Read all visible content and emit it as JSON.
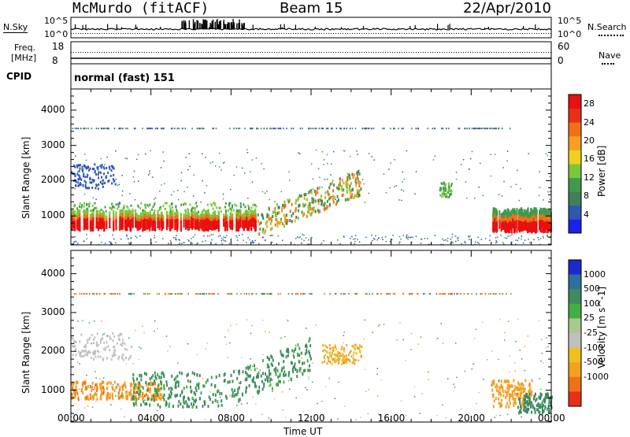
{
  "header": {
    "station": "McMurdo (fitACF)",
    "beam": "Beam 15",
    "date": "22/Apr/2010",
    "nsky_label": "N.Sky",
    "nsearch_label": "N.Search",
    "freq_label": "Freq.",
    "freq_unit": "[MHz]",
    "nave_label": "Nave",
    "cpid_label": "CPID",
    "cpid_value": "normal (fast) 151",
    "noise_ticks_left": [
      "10^5",
      "10^0"
    ],
    "noise_ticks_right": [
      "10^5",
      "10^0"
    ],
    "freq_ticks": [
      "18",
      "8"
    ],
    "nave_ticks": [
      "60",
      "0"
    ]
  },
  "chart_data": [
    {
      "type": "heatmap",
      "panel": "power",
      "xlabel": "",
      "ylabel": "Slant Range [km]",
      "ylim": [
        180,
        4600
      ],
      "yticks": [
        1000,
        2000,
        3000,
        4000
      ],
      "xlim_hours": [
        0,
        24
      ],
      "colorbar": {
        "label": "Power [dB]",
        "ticks": [
          "4",
          "8",
          "12",
          "16",
          "20",
          "24",
          "28"
        ],
        "colors": [
          "#1a22e8",
          "#2f55b5",
          "#3f7f5a",
          "#3f9a4c",
          "#7ac83a",
          "#f0d020",
          "#f4a020",
          "#f07018",
          "#e83018",
          "#e81010"
        ]
      },
      "features": [
        {
          "desc": "strong backscatter band",
          "t_start": 0.0,
          "t_end": 9.3,
          "range_km": [
            500,
            1250
          ],
          "value_db": 28
        },
        {
          "desc": "band rising to 2000 km",
          "t_start": 9.3,
          "t_end": 14.5,
          "range_km": [
            800,
            2200
          ],
          "value_db": 14
        },
        {
          "desc": "late band",
          "t_start": 21.0,
          "t_end": 24.0,
          "range_km": [
            500,
            1200
          ],
          "value_db": 26
        },
        {
          "desc": "weak scatter line",
          "t_start": 0.0,
          "t_end": 22.0,
          "range_km": [
            3440,
            3500
          ],
          "value_db": 6
        }
      ]
    },
    {
      "type": "heatmap",
      "panel": "velocity",
      "xlabel": "Time UT",
      "ylabel": "Slant Range [km]",
      "ylim": [
        180,
        4600
      ],
      "yticks": [
        1000,
        2000,
        3000,
        4000
      ],
      "xticks": [
        "00:00",
        "04:00",
        "08:00",
        "12:00",
        "16:00",
        "20:00",
        "00:00"
      ],
      "xlim_hours": [
        0,
        24
      ],
      "colorbar": {
        "label": "Velocity [m s^-1]",
        "ticks": [
          "1000",
          "500",
          "100",
          "25",
          "-25",
          "-100",
          "-500",
          "-1000"
        ],
        "colors": [
          "#1a2ad0",
          "#2f6fa0",
          "#3f8a60",
          "#40b040",
          "#a8c890",
          "#c0c0c0",
          "#f0c020",
          "#f4a020",
          "#f07018",
          "#e83018"
        ]
      },
      "features": [
        {
          "desc": "negative velocities",
          "t_start": 0.0,
          "t_end": 4.5,
          "range_km": [
            800,
            1250
          ],
          "value_ms": -300
        },
        {
          "desc": "positive velocity band",
          "t_start": 4.5,
          "t_end": 12.0,
          "range_km": [
            500,
            1800
          ],
          "value_ms": 200
        },
        {
          "desc": "orange feature",
          "t_start": 12.5,
          "t_end": 14.5,
          "range_km": [
            1700,
            2200
          ],
          "value_ms": -200
        },
        {
          "desc": "late negative velocities",
          "t_start": 21.0,
          "t_end": 23.0,
          "range_km": [
            600,
            1300
          ],
          "value_ms": -300
        },
        {
          "desc": "late positive band",
          "t_start": 22.5,
          "t_end": 24.0,
          "range_km": [
            500,
            1000
          ],
          "value_ms": 200
        }
      ]
    }
  ],
  "colors": {
    "axis": "#000000",
    "background": "#ffffff"
  }
}
